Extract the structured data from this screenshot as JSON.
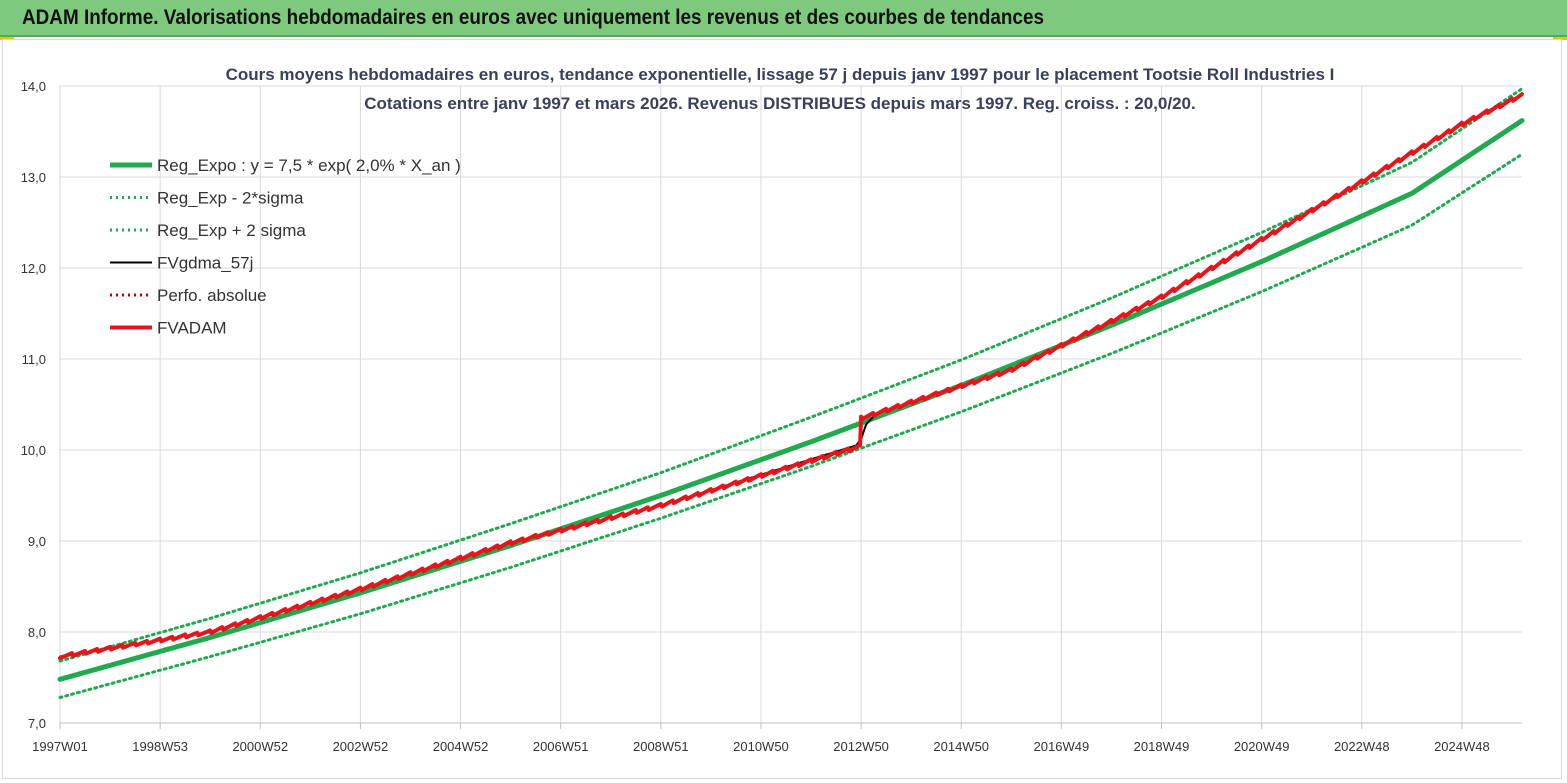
{
  "header": {
    "title": "ADAM Informe. Valorisations hebdomadaires en euros avec uniquement les revenus et des courbes de tendances"
  },
  "chart_data": {
    "type": "line",
    "title_lines": [
      "Cours moyens hebdomadaires en euros, tendance exponentielle, lissage 57 j depuis janv 1997 pour le placement Tootsie Roll Industries I",
      "Cotations entre janv 1997 et mars 2026. Revenus DISTRIBUES depuis mars 1997. Reg. croiss. : 20,0/20."
    ],
    "xlabel": "",
    "ylabel": "",
    "ylim": [
      7.0,
      14.0
    ],
    "y_ticks": [
      "7,0",
      "8,0",
      "9,0",
      "10,0",
      "11,0",
      "12,0",
      "13,0",
      "14,0"
    ],
    "x_range_years": [
      1997.0,
      2026.2
    ],
    "x_ticks": [
      {
        "year": 1997.0,
        "label": "1997W01"
      },
      {
        "year": 1999.0,
        "label": "1998W53"
      },
      {
        "year": 2001.0,
        "label": "2000W52"
      },
      {
        "year": 2003.0,
        "label": "2002W52"
      },
      {
        "year": 2005.0,
        "label": "2004W52"
      },
      {
        "year": 2007.0,
        "label": "2006W51"
      },
      {
        "year": 2009.0,
        "label": "2008W51"
      },
      {
        "year": 2011.0,
        "label": "2010W50"
      },
      {
        "year": 2013.0,
        "label": "2012W50"
      },
      {
        "year": 2015.0,
        "label": "2014W50"
      },
      {
        "year": 2017.0,
        "label": "2016W49"
      },
      {
        "year": 2019.0,
        "label": "2018W49"
      },
      {
        "year": 2021.0,
        "label": "2020W49"
      },
      {
        "year": 2023.0,
        "label": "2022W48"
      },
      {
        "year": 2025.0,
        "label": "2024W48"
      }
    ],
    "grid": true,
    "legend_position": "top-left",
    "series": [
      {
        "name": "Reg_Expo : y = 7,5 * exp( 2,0% *  X_an )",
        "color": "#1faa50",
        "style": "solid-thick",
        "x": [
          1997.0,
          2000.0,
          2003.0,
          2006.0,
          2009.0,
          2012.0,
          2015.0,
          2018.0,
          2021.0,
          2024.0,
          2026.2
        ],
        "values": [
          7.48,
          7.94,
          8.43,
          8.95,
          9.5,
          10.09,
          10.71,
          11.37,
          12.07,
          12.82,
          13.62
        ]
      },
      {
        "name": "Reg_Exp - 2*sigma",
        "color": "#1faa50",
        "style": "dotted",
        "x": [
          1997.0,
          2000.0,
          2003.0,
          2006.0,
          2009.0,
          2012.0,
          2015.0,
          2018.0,
          2021.0,
          2024.0,
          2026.2
        ],
        "values": [
          7.28,
          7.73,
          8.2,
          8.71,
          9.25,
          9.82,
          10.42,
          11.06,
          11.74,
          12.47,
          13.25
        ]
      },
      {
        "name": "Reg_Exp + 2 sigma",
        "color": "#1faa50",
        "style": "dotted",
        "x": [
          1997.0,
          2000.0,
          2003.0,
          2006.0,
          2009.0,
          2012.0,
          2015.0,
          2018.0,
          2021.0,
          2024.0,
          2026.2
        ],
        "values": [
          7.68,
          8.15,
          8.65,
          9.19,
          9.75,
          10.36,
          10.99,
          11.67,
          12.39,
          13.16,
          13.97
        ]
      },
      {
        "name": "FVgdma_57j",
        "color": "#000000",
        "style": "solid",
        "x": [
          1997.0,
          2000.0,
          2003.0,
          2006.0,
          2009.0,
          2012.9,
          2013.0,
          2013.1,
          2013.3,
          2016.0,
          2019.0,
          2022.0,
          2025.0,
          2026.2
        ],
        "values": [
          7.73,
          8.0,
          8.47,
          8.98,
          9.39,
          10.05,
          10.12,
          10.28,
          10.4,
          10.88,
          11.68,
          12.63,
          13.58,
          13.9
        ]
      },
      {
        "name": "Perfo. absolue",
        "color": "#c00000",
        "style": "dotted",
        "x": [],
        "values": []
      },
      {
        "name": "FVADAM",
        "color": "#e8141c",
        "style": "solid-thick",
        "x": [
          1997.0,
          2000.0,
          2003.0,
          2006.0,
          2009.0,
          2012.98,
          2013.0,
          2013.3,
          2016.0,
          2019.0,
          2022.0,
          2025.0,
          2026.2
        ],
        "values": [
          7.73,
          8.0,
          8.47,
          8.98,
          9.39,
          10.04,
          10.35,
          10.4,
          10.88,
          11.68,
          12.63,
          13.58,
          13.9
        ]
      }
    ]
  }
}
